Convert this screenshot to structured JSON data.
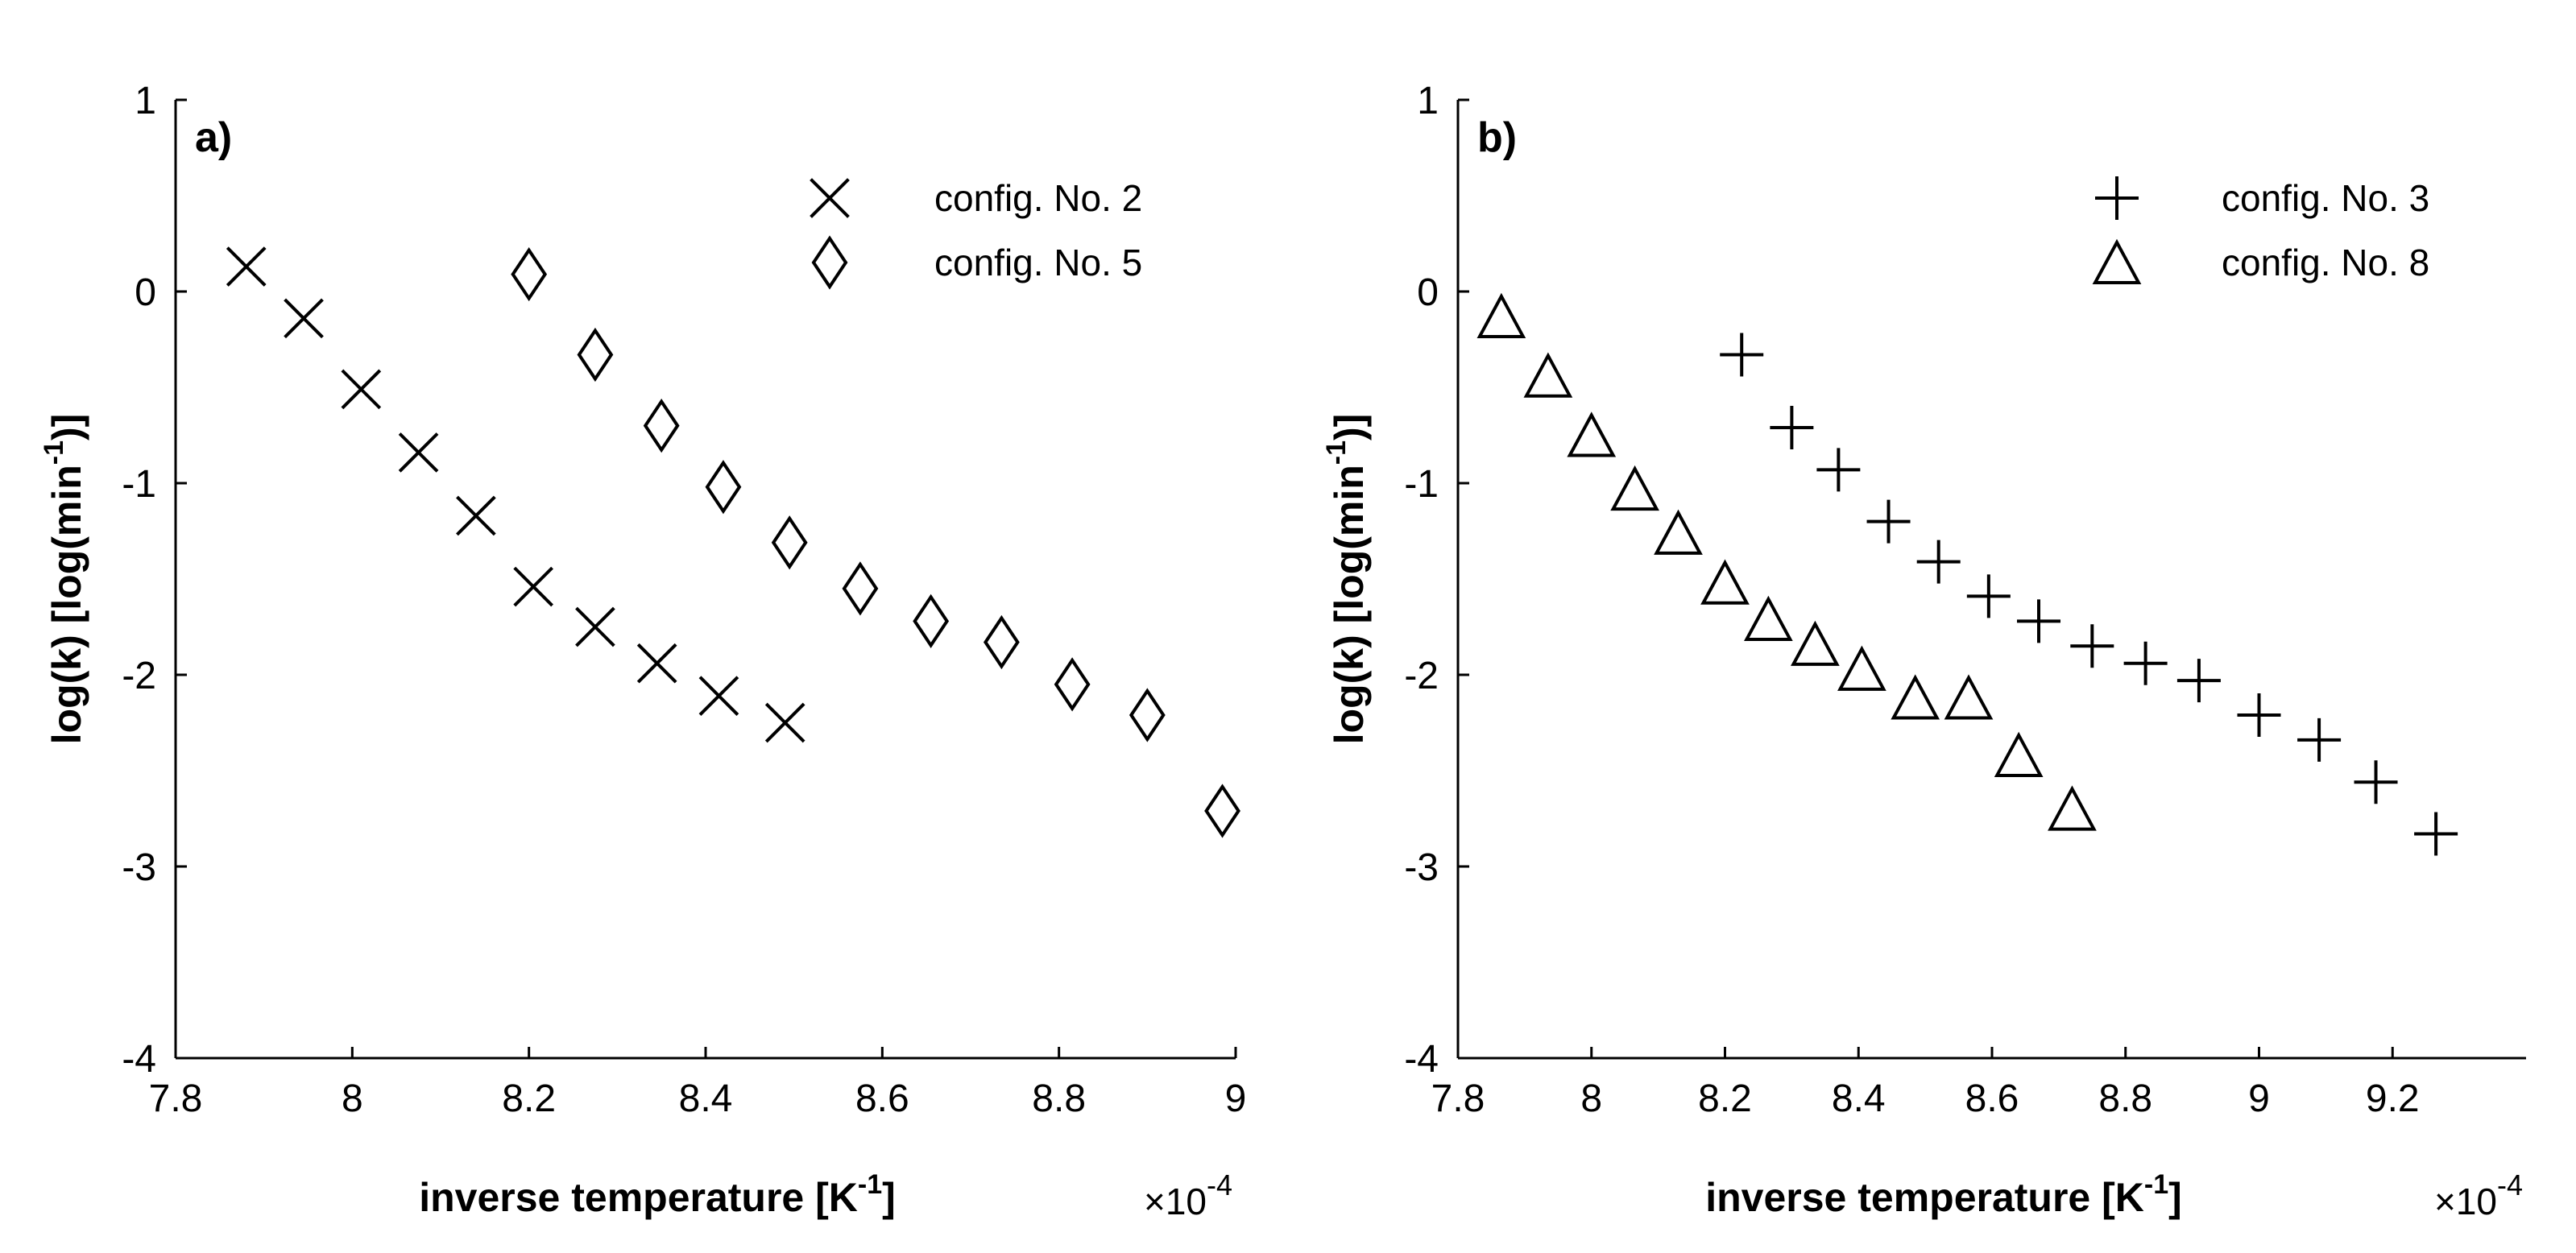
{
  "chart_data": [
    {
      "type": "scatter",
      "panel_label": "a)",
      "xlabel": "inverse temperature [K",
      "xlabel_sup": "-1",
      "xlabel_end": "]",
      "ylabel": "log(k) [log(min",
      "ylabel_sup": "-1",
      "ylabel_end": ")]",
      "x_multiplier_text": "×10",
      "x_multiplier_exp": "-4",
      "xlim": [
        7.8,
        9.0
      ],
      "ylim": [
        -4,
        1
      ],
      "xticks": [
        7.8,
        8,
        8.2,
        8.4,
        8.6,
        8.8,
        9
      ],
      "xtick_labels": [
        "7.8",
        "8",
        "8.2",
        "8.4",
        "8.6",
        "8.8",
        "9"
      ],
      "yticks": [
        1,
        0,
        -1,
        -2,
        -3,
        -4
      ],
      "ytick_labels": [
        "1",
        "0",
        "-1",
        "-2",
        "-3",
        "-4"
      ],
      "legend_position": "top-right",
      "series": [
        {
          "name": "config. No. 2",
          "marker": "x",
          "x": [
            7.88,
            7.945,
            8.01,
            8.075,
            8.14,
            8.205,
            8.275,
            8.345,
            8.415,
            8.49
          ],
          "y": [
            0.13,
            -0.14,
            -0.51,
            -0.84,
            -1.17,
            -1.54,
            -1.75,
            -1.94,
            -2.11,
            -2.25
          ]
        },
        {
          "name": "config. No. 5",
          "marker": "diamond",
          "x": [
            8.2,
            8.275,
            8.35,
            8.42,
            8.495,
            8.575,
            8.655,
            8.735,
            8.815,
            8.9,
            8.985
          ],
          "y": [
            0.09,
            -0.33,
            -0.7,
            -1.02,
            -1.31,
            -1.55,
            -1.72,
            -1.83,
            -2.05,
            -2.21,
            -2.71
          ]
        }
      ]
    },
    {
      "type": "scatter",
      "panel_label": "b)",
      "xlabel": "inverse temperature [K",
      "xlabel_sup": "-1",
      "xlabel_end": "]",
      "ylabel": "log(k) [log(min",
      "ylabel_sup": "-1",
      "ylabel_end": ")]",
      "x_multiplier_text": "×10",
      "x_multiplier_exp": "-4",
      "xlim": [
        7.8,
        9.4
      ],
      "ylim": [
        -4,
        1
      ],
      "xticks": [
        7.8,
        8,
        8.2,
        8.4,
        8.6,
        8.8,
        9,
        9.2
      ],
      "xtick_labels": [
        "7.8",
        "8",
        "8.2",
        "8.4",
        "8.6",
        "8.8",
        "9",
        "9.2"
      ],
      "yticks": [
        1,
        0,
        -1,
        -2,
        -3,
        -4
      ],
      "ytick_labels": [
        "1",
        "0",
        "-1",
        "-2",
        "-3",
        "-4"
      ],
      "legend_position": "top-right",
      "series": [
        {
          "name": "config. No. 3",
          "marker": "plus",
          "x": [
            8.225,
            8.3,
            8.37,
            8.445,
            8.52,
            8.595,
            8.67,
            8.75,
            8.83,
            8.91,
            9.0,
            9.09,
            9.175,
            9.265
          ],
          "y": [
            -0.33,
            -0.71,
            -0.93,
            -1.2,
            -1.41,
            -1.59,
            -1.72,
            -1.85,
            -1.94,
            -2.03,
            -2.21,
            -2.34,
            -2.56,
            -2.83
          ]
        },
        {
          "name": "config. No. 8",
          "marker": "triangle",
          "x": [
            7.865,
            7.935,
            8.0,
            8.065,
            8.13,
            8.2,
            8.265,
            8.335,
            8.405,
            8.485,
            8.565,
            8.64,
            8.72
          ],
          "y": [
            -0.13,
            -0.44,
            -0.75,
            -1.03,
            -1.26,
            -1.52,
            -1.71,
            -1.84,
            -1.97,
            -2.12,
            -2.12,
            -2.42,
            -2.7
          ]
        }
      ]
    }
  ]
}
